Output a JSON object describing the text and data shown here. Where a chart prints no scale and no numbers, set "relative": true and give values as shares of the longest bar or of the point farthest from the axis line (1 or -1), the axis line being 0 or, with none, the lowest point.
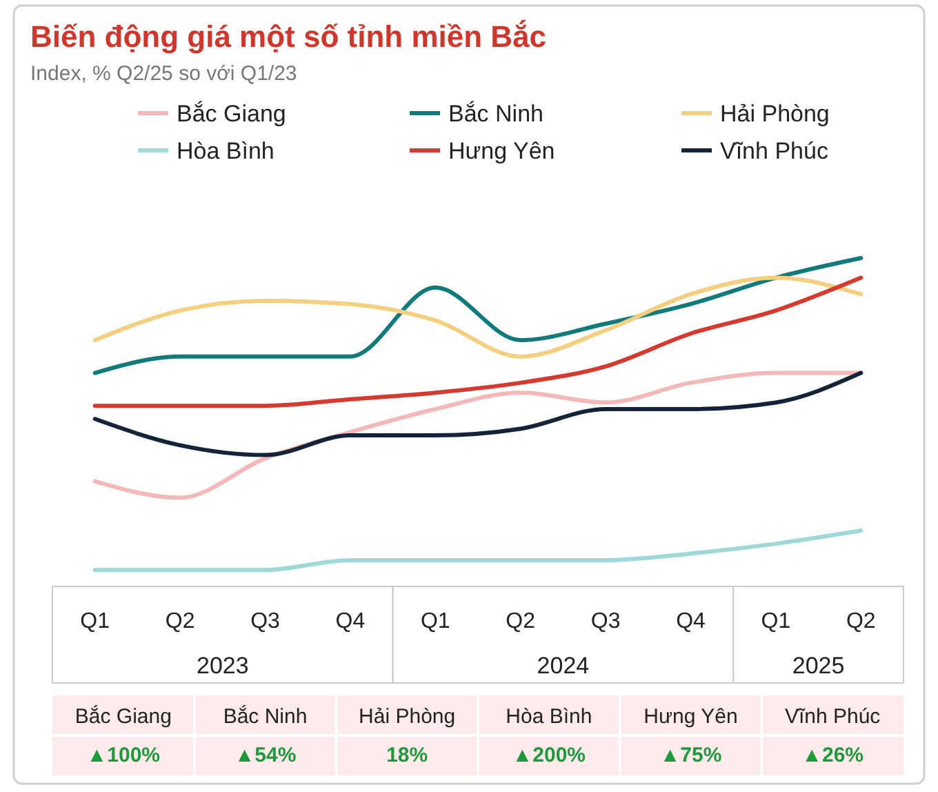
{
  "chart_data": {
    "type": "line",
    "title": "Biến động giá một số tỉnh miền Bắc",
    "subtitle": "Index, % Q2/25 so với Q1/23",
    "relative": true,
    "legend": "top",
    "grid": false,
    "marker": "none",
    "categories": [
      "Q1",
      "Q2",
      "Q3",
      "Q4",
      "Q1",
      "Q2",
      "Q3",
      "Q4",
      "Q1",
      "Q2"
    ],
    "series": [
      {
        "name": "Bắc Giang",
        "color": "#f4b8b8",
        "values": [
          0.32,
          0.27,
          0.39,
          0.47,
          0.54,
          0.59,
          0.56,
          0.62,
          0.65,
          0.65
        ]
      },
      {
        "name": "Bắc Ninh",
        "color": "#127a7a",
        "values": [
          0.65,
          0.7,
          0.7,
          0.7,
          0.91,
          0.75,
          0.8,
          0.86,
          0.94,
          1
        ]
      },
      {
        "name": "Hải Phòng",
        "color": "#f5cf80",
        "values": [
          0.75,
          0.84,
          0.87,
          0.86,
          0.81,
          0.7,
          0.78,
          0.89,
          0.94,
          0.89
        ]
      },
      {
        "name": "Hòa Bình",
        "color": "#9fd8d8",
        "values": [
          0.05,
          0.05,
          0.05,
          0.08,
          0.08,
          0.08,
          0.08,
          0.1,
          0.13,
          0.17
        ]
      },
      {
        "name": "Hưng Yên",
        "color": "#d63a2f",
        "values": [
          0.55,
          0.55,
          0.55,
          0.57,
          0.59,
          0.62,
          0.67,
          0.77,
          0.84,
          0.94
        ]
      },
      {
        "name": "Vĩnh Phúc",
        "color": "#14233a",
        "values": [
          0.51,
          0.43,
          0.4,
          0.46,
          0.46,
          0.48,
          0.54,
          0.54,
          0.56,
          0.65
        ]
      }
    ],
    "annotations": [
      "2023",
      "2024",
      "2025",
      "▲100%",
      "▲54%",
      "18%",
      "▲200%",
      "▲75%",
      "▲26%"
    ]
  }
}
